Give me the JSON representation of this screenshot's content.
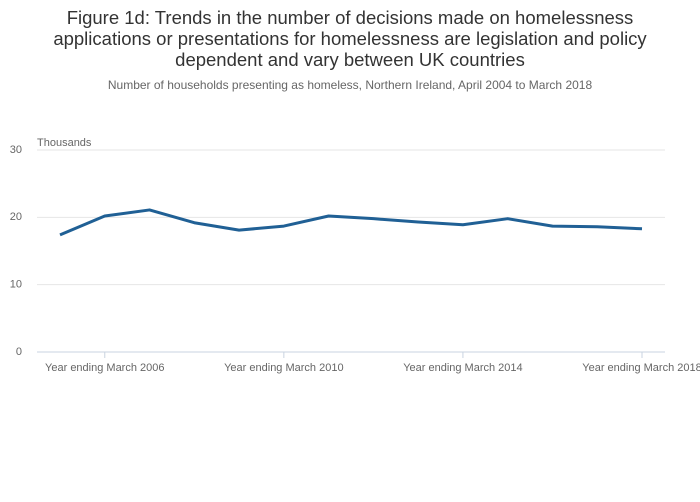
{
  "chart_data": {
    "type": "line",
    "title": "Figure 1d: Trends in the number of decisions made on homelessness applications or presentations for homelessness are legislation and policy dependent and vary between UK countries",
    "subtitle": "Number of households presenting as homeless, Northern Ireland, April 2004 to March 2018",
    "y_label": "Thousands",
    "categories": [
      null,
      "Year ending March 2006",
      null,
      null,
      null,
      "Year ending March 2010",
      null,
      null,
      null,
      "Year ending March 2014",
      null,
      null,
      null,
      "Year ending March 2018"
    ],
    "series": [
      {
        "name": "Northern Ireland",
        "color": "#206095",
        "values": [
          17.4,
          20.2,
          21.1,
          19.2,
          18.1,
          18.7,
          20.2,
          19.8,
          19.3,
          18.9,
          19.8,
          18.7,
          18.6,
          18.3
        ]
      }
    ],
    "ylim": [
      0,
      30
    ],
    "yticks": [
      0,
      10,
      20,
      30
    ],
    "grid": true
  }
}
